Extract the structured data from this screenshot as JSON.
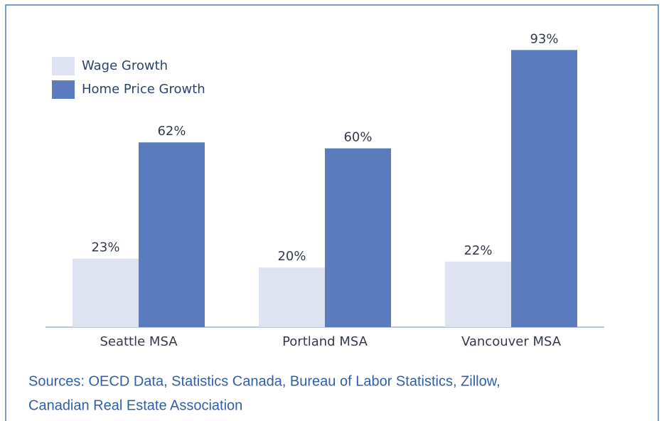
{
  "chart_data": {
    "type": "bar",
    "categories": [
      "Seattle MSA",
      "Portland MSA",
      "Vancouver MSA"
    ],
    "series": [
      {
        "name": "Wage Growth",
        "color": "#dfe3f1",
        "values": [
          23,
          20,
          22
        ],
        "value_labels": [
          "23%",
          "20%",
          "22%"
        ]
      },
      {
        "name": "Home Price Growth",
        "color": "#5a7bbd",
        "values": [
          62,
          60,
          93
        ],
        "value_labels": [
          "62%",
          "60%",
          "93%"
        ]
      }
    ],
    "ylim": [
      0,
      100
    ],
    "source": [
      "Sources: OECD Data, Statistics Canada, Bureau of Labor Statistics, Zillow,",
      "Canadian Real Estate Association"
    ]
  }
}
